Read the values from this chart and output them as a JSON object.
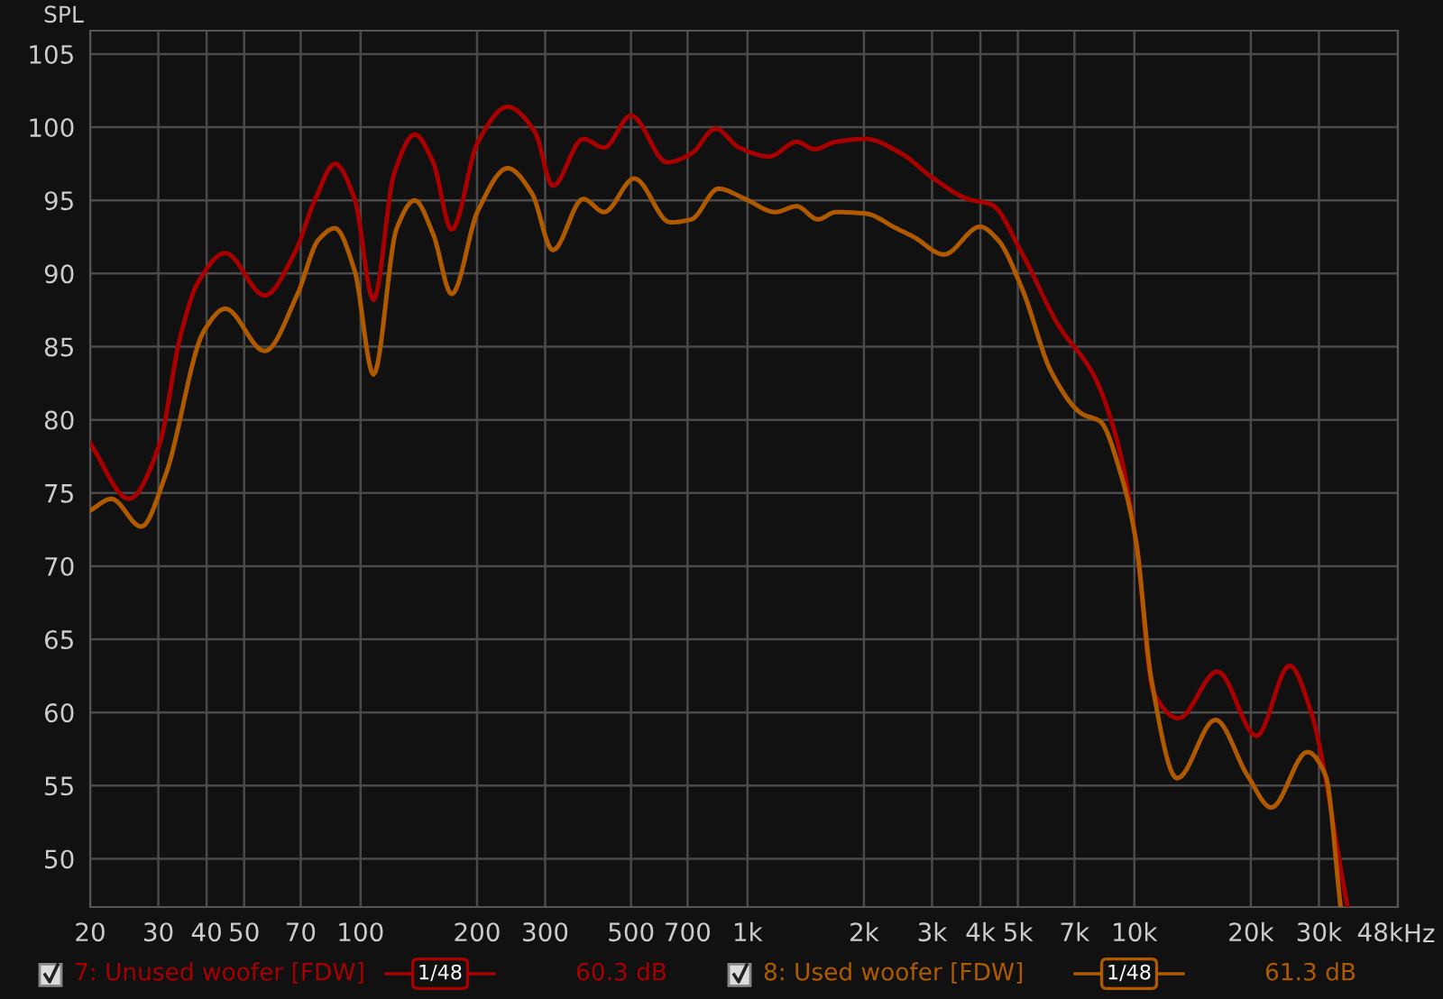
{
  "chart_data": {
    "type": "line",
    "ylabel": "SPL",
    "xlim": [
      20,
      48000
    ],
    "ylim": [
      46.7,
      106.6
    ],
    "log": "x",
    "grid": true,
    "legend": "bottom",
    "xticks": [
      20,
      30,
      40,
      50,
      70,
      100,
      200,
      300,
      500,
      700,
      {
        "value": 1000,
        "label": "1k"
      },
      {
        "value": 2000,
        "label": "2k"
      },
      {
        "value": 3000,
        "label": "3k"
      },
      {
        "value": 4000,
        "label": "4k"
      },
      {
        "value": 5000,
        "label": "5k"
      },
      {
        "value": 7000,
        "label": "7k"
      },
      {
        "value": 10000,
        "label": "10k"
      },
      {
        "value": 20000,
        "label": "20k"
      },
      {
        "value": 30000,
        "label": "30k"
      },
      {
        "value": 48000,
        "label": "48k"
      }
    ],
    "xlabel": "Hz",
    "yticks": [
      50,
      55,
      60,
      65,
      70,
      75,
      80,
      85,
      90,
      95,
      100,
      105
    ],
    "annotations": [
      "1/48",
      "60.3 dB",
      "1/48",
      "61.3 dB"
    ],
    "series": [
      {
        "name": "7: Unused woofer [FDW]",
        "color": "#a80000",
        "x": [
          20,
          25.2,
          30.2,
          34.2,
          38,
          44.7,
          56.5,
          67.5,
          76.4,
          85.8,
          96.5,
          108,
          122,
          138,
          154,
          172,
          201,
          240,
          282,
          314,
          376,
          426,
          500,
          620,
          716,
          827,
          953,
          1140,
          1340,
          1490,
          1690,
          2020,
          2500,
          2990,
          3710,
          4280,
          5120,
          6350,
          7870,
          9080,
          10100,
          11200,
          13000,
          16400,
          20700,
          25200,
          28500,
          35500
        ],
        "values": [
          78.4,
          74.6,
          78.3,
          85.7,
          89.4,
          91.4,
          88.5,
          91.4,
          95.1,
          97.5,
          95.1,
          88.2,
          96.8,
          99.5,
          97.6,
          93.0,
          99.0,
          101.4,
          99.7,
          96.0,
          99.2,
          98.6,
          100.8,
          97.6,
          98.2,
          99.9,
          98.6,
          98.0,
          99.0,
          98.5,
          99.0,
          99.2,
          98.2,
          96.6,
          95.1,
          94.7,
          91.4,
          86.5,
          83.0,
          78.3,
          71.7,
          61.4,
          59.6,
          62.8,
          58.4,
          63.2,
          60.2,
          46.8
        ]
      },
      {
        "name": "8: Used woofer [FDW]",
        "color": "#b05a00",
        "x": [
          20,
          22.7,
          27.1,
          31.3,
          39.4,
          44.7,
          56.5,
          68.7,
          77.8,
          85.8,
          96.5,
          108,
          124,
          138,
          154,
          172,
          201,
          240,
          277,
          314,
          376,
          426,
          510,
          631,
          716,
          841,
          986,
          1180,
          1340,
          1520,
          1690,
          2020,
          2420,
          2690,
          3220,
          3990,
          4440,
          5120,
          6120,
          7330,
          8150,
          9250,
          10100,
          11060,
          12900,
          16200,
          19600,
          22600,
          28000,
          31200,
          34100
        ],
        "values": [
          73.8,
          74.6,
          72.7,
          76.2,
          86.1,
          87.6,
          84.7,
          88.6,
          92.3,
          93.1,
          90.2,
          83.1,
          93.1,
          95.0,
          92.7,
          88.6,
          94.3,
          97.2,
          95.5,
          91.6,
          95.1,
          94.2,
          96.5,
          93.5,
          93.7,
          95.8,
          95.1,
          94.2,
          94.6,
          93.7,
          94.2,
          94.1,
          93.1,
          92.5,
          91.3,
          93.2,
          92.3,
          89.0,
          83.2,
          80.4,
          79.9,
          76.2,
          71.7,
          62.3,
          55.5,
          59.5,
          55.7,
          53.5,
          57.3,
          55.7,
          46.8
        ]
      }
    ]
  }
}
